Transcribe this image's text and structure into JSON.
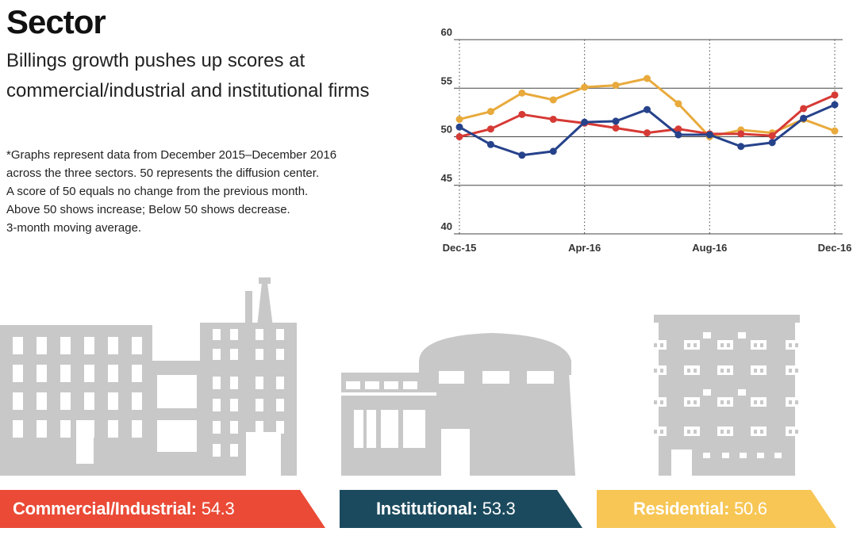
{
  "header": {
    "title": "Sector",
    "subtitle": "Billings growth pushes up scores at commercial/industrial and institutional firms",
    "footnote": [
      "*Graphs represent data from December 2015–December 2016",
      "across the three sectors. 50 represents the diffusion center.",
      "A score of 50 equals no change from the previous month.",
      "Above 50 shows increase; Below 50 shows decrease.",
      "3-month moving average."
    ]
  },
  "chart_data": {
    "type": "line",
    "x": [
      "Dec-15",
      "Jan-16",
      "Feb-16",
      "Mar-16",
      "Apr-16",
      "May-16",
      "Jun-16",
      "Jul-16",
      "Aug-16",
      "Sep-16",
      "Oct-16",
      "Nov-16",
      "Dec-16"
    ],
    "x_tick_labels": [
      "Dec-15",
      "Apr-16",
      "Aug-16",
      "Dec-16"
    ],
    "y_ticks": [
      40,
      45,
      50,
      55,
      60
    ],
    "ylim": [
      40,
      60
    ],
    "grid": "horizontal solid, vertical dotted at labeled months",
    "series": [
      {
        "key": "residential",
        "color": "#e8aa3c",
        "values": [
          51.8,
          52.6,
          54.5,
          53.8,
          55.1,
          55.3,
          56.0,
          53.4,
          50.0,
          50.7,
          50.4,
          51.8,
          50.6
        ]
      },
      {
        "key": "commercial",
        "color": "#d63a35",
        "values": [
          50.0,
          50.8,
          52.3,
          51.8,
          51.4,
          50.9,
          50.4,
          50.8,
          50.3,
          50.3,
          50.1,
          52.9,
          54.3
        ]
      },
      {
        "key": "institutional",
        "color": "#26428b",
        "values": [
          51.0,
          49.2,
          48.1,
          48.5,
          51.5,
          51.6,
          52.8,
          50.2,
          50.2,
          49.0,
          49.4,
          51.9,
          53.3
        ]
      }
    ]
  },
  "sectors": {
    "commercial": {
      "label": "Commercial/Industrial:",
      "value": "54.3",
      "color": "#ea4a36"
    },
    "institutional": {
      "label": "Institutional:",
      "value": "53.3",
      "color": "#1b4a5e"
    },
    "residential": {
      "label": "Residential:",
      "value": "50.6",
      "color": "#f7c655"
    }
  },
  "colors": {
    "building": "#c8c8c8",
    "gridline": "#444444"
  }
}
